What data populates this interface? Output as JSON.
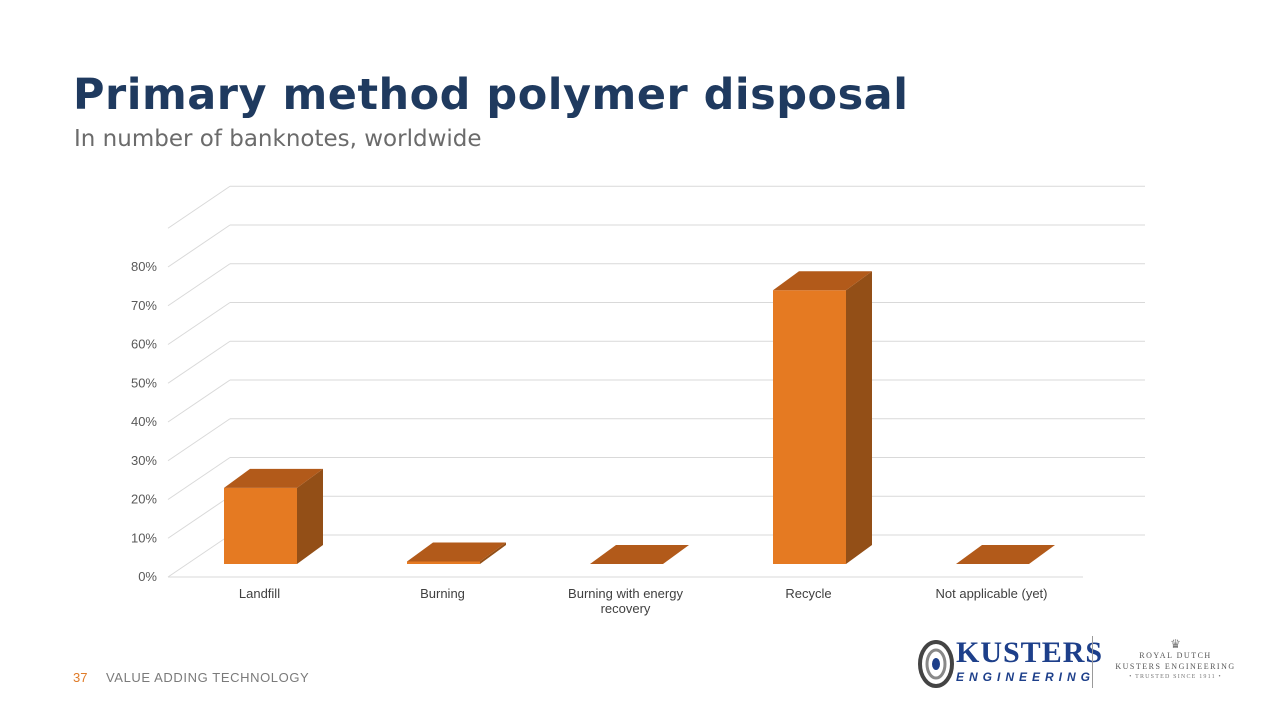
{
  "slide": {
    "title": "Primary method polymer disposal",
    "subtitle": "In number of banknotes, worldwide",
    "page_number": "37",
    "footer_text": "VALUE ADDING TECHNOLOGY"
  },
  "logo": {
    "brand": "KUSTERS",
    "brand_sub": "ENGINEERING",
    "royal_line1": "ROYAL DUTCH",
    "royal_line2": "KUSTERS ENGINEERING",
    "royal_line3": "• TRUSTED SINCE 1911 •",
    "brand_color": "#1d3f8a",
    "crown_icon": "crown-icon"
  },
  "chart_data": {
    "type": "bar",
    "style": "3d-column",
    "categories": [
      "Landfill",
      "Burning",
      "Burning with energy recovery",
      "Recycle",
      "Not applicable (yet)"
    ],
    "values": [
      23,
      4,
      0,
      74,
      0
    ],
    "unit": "%",
    "ylim": [
      0,
      80
    ],
    "yticks": [
      "0%",
      "10%",
      "20%",
      "30%",
      "40%",
      "50%",
      "60%",
      "70%",
      "80%"
    ],
    "grid": true,
    "legend": "none",
    "colors": {
      "front": "#e57a22",
      "top": "#b25a1a",
      "side": "#934f17"
    }
  }
}
